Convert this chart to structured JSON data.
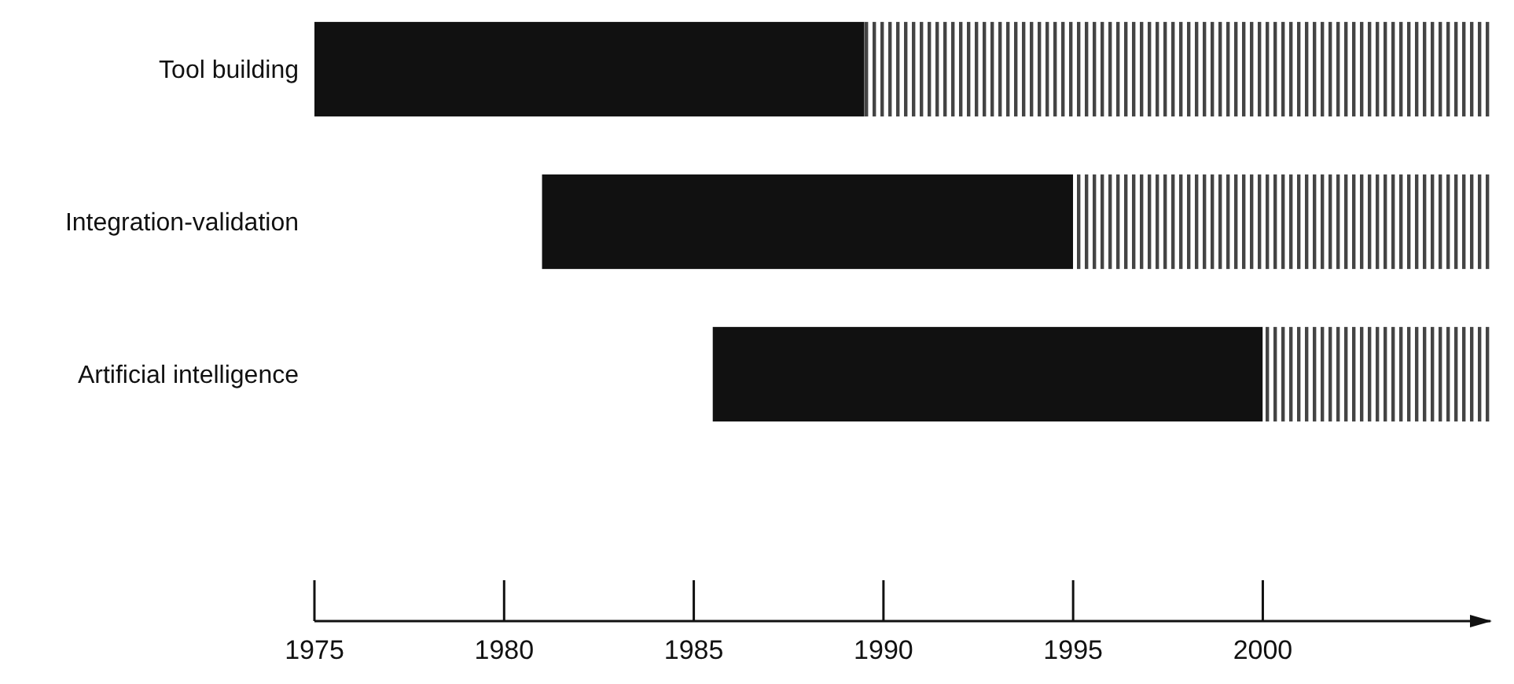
{
  "chart_data": {
    "type": "bar",
    "orientation": "horizontal",
    "categories": [
      "Tool building",
      "Integration-validation",
      "Artificial intelligence"
    ],
    "series": [
      {
        "color": "#111111",
        "base": [
          1975,
          1981,
          1985.5
        ],
        "values": [
          14.5,
          14,
          14.5
        ]
      },
      {
        "color": "#444444",
        "base": [
          1989.5,
          1995,
          2000
        ],
        "values": [
          16.5,
          11,
          6
        ]
      }
    ],
    "xlim": [
      1975,
      2006
    ],
    "xticks": [
      1975,
      1980,
      1985,
      1990,
      1995,
      2000
    ],
    "grid": false
  }
}
